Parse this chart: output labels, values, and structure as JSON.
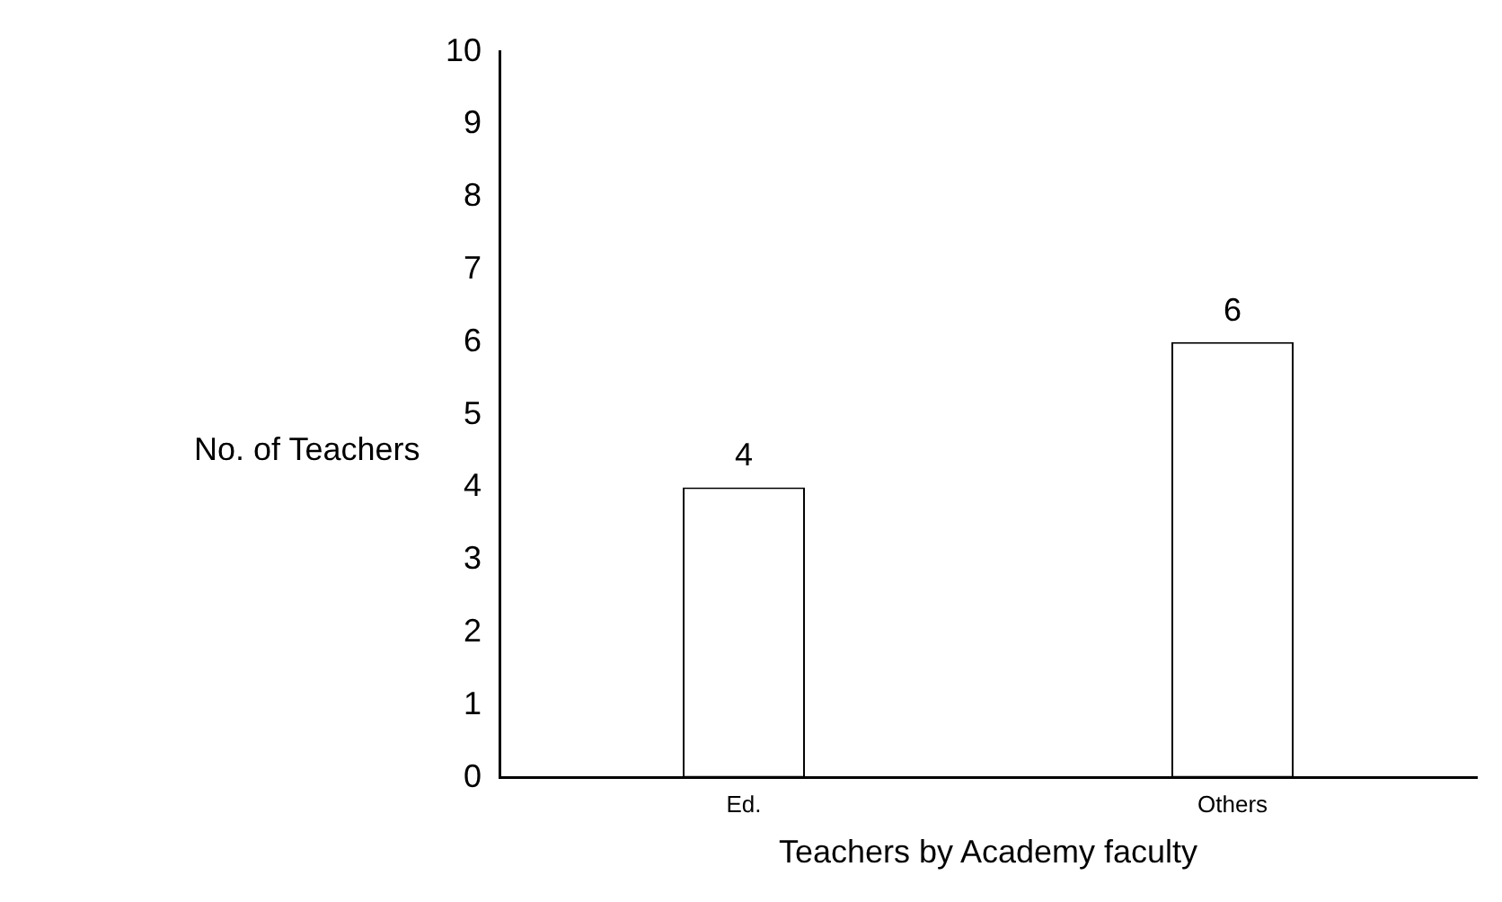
{
  "chart_data": {
    "type": "bar",
    "xlabel": "Teachers by Academy faculty",
    "ylabel": "No. of Teachers",
    "categories": [
      "Ed.",
      "Others"
    ],
    "values": [
      4,
      6
    ],
    "color": "#ffffff",
    "ylim": [
      0,
      10
    ],
    "yticks": [
      0,
      1,
      2,
      3,
      4,
      5,
      6,
      7,
      8,
      9,
      10
    ],
    "grid": false,
    "legend": false,
    "data_labels": true
  }
}
